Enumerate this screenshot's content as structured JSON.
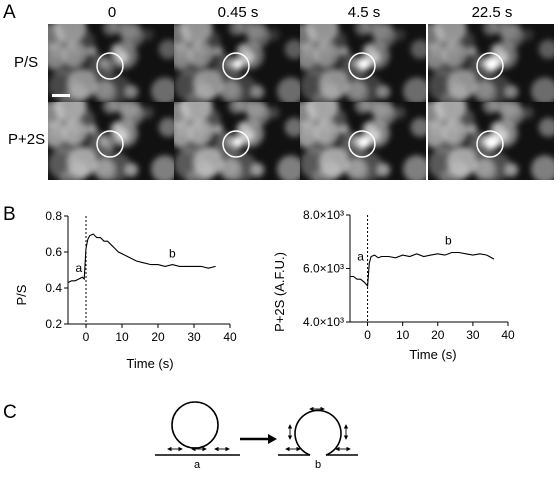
{
  "panels": {
    "a": "A",
    "b": "B",
    "c": "C"
  },
  "panel_a": {
    "time_labels": [
      "0",
      "0.45 s",
      "4.5 s",
      "22.5 s"
    ],
    "row_labels": [
      "P/S",
      "P+2S"
    ]
  },
  "chart_data": [
    {
      "type": "line",
      "ylabel": "P/S",
      "xlabel": "Time (s)",
      "xlim": [
        -5,
        40
      ],
      "ylim": [
        0.2,
        0.8
      ],
      "xticks": [
        "0",
        "10",
        "20",
        "30",
        "40"
      ],
      "yticks": [
        "0.2",
        "0.4",
        "0.6",
        "0.8"
      ],
      "annotations": [
        {
          "text": "a",
          "x": -2,
          "y": 0.49
        },
        {
          "text": "b",
          "x": 24,
          "y": 0.57
        }
      ],
      "stimulus_line_x": 0,
      "series": [
        {
          "x": [
            -5,
            -4,
            -3,
            -2,
            -1,
            -0.5,
            0,
            0.5,
            1,
            2,
            3,
            4,
            5,
            6,
            7,
            8,
            9,
            10,
            12,
            14,
            16,
            18,
            20,
            22,
            24,
            26,
            28,
            30,
            32,
            34,
            36
          ],
          "values": [
            0.43,
            0.44,
            0.44,
            0.45,
            0.46,
            0.45,
            0.62,
            0.67,
            0.69,
            0.7,
            0.68,
            0.68,
            0.66,
            0.66,
            0.64,
            0.62,
            0.6,
            0.59,
            0.57,
            0.55,
            0.54,
            0.53,
            0.53,
            0.52,
            0.53,
            0.52,
            0.52,
            0.52,
            0.52,
            0.51,
            0.52
          ]
        }
      ]
    },
    {
      "type": "line",
      "ylabel": "P+2S (A.F.U.)",
      "xlabel": "Time (s)",
      "xlim": [
        -5,
        40
      ],
      "ylim": [
        4000,
        8000
      ],
      "xticks": [
        "0",
        "10",
        "20",
        "30",
        "40"
      ],
      "yticks": [
        "4.0×10³",
        "6.0×10³",
        "8.0×10³"
      ],
      "annotations": [
        {
          "text": "a",
          "x": -2,
          "y": 6300
        },
        {
          "text": "b",
          "x": 23,
          "y": 6900
        }
      ],
      "stimulus_line_x": 0,
      "series": [
        {
          "x": [
            -5,
            -4,
            -3,
            -2,
            -1,
            0,
            0.5,
            1,
            2,
            3,
            4,
            6,
            8,
            10,
            12,
            14,
            16,
            18,
            20,
            22,
            24,
            26,
            28,
            30,
            32,
            34,
            36
          ],
          "values": [
            5700,
            5700,
            5600,
            5600,
            5500,
            5350,
            6200,
            6450,
            6500,
            6400,
            6450,
            6450,
            6400,
            6500,
            6450,
            6550,
            6450,
            6500,
            6550,
            6500,
            6600,
            6600,
            6550,
            6500,
            6550,
            6500,
            6350
          ]
        }
      ]
    }
  ],
  "panel_c": {
    "label_a": "a",
    "label_b": "b"
  }
}
